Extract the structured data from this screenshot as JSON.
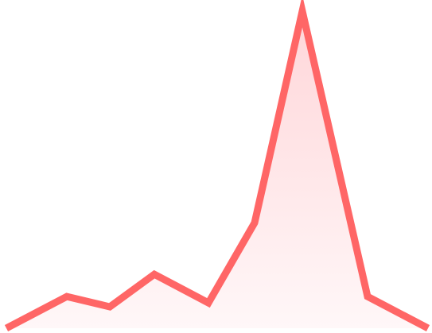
{
  "chart_data": {
    "type": "area",
    "x": [
      0,
      1,
      2,
      3,
      4,
      5,
      6,
      7,
      8
    ],
    "values": [
      0,
      40,
      27,
      68,
      32,
      133,
      400,
      40,
      0
    ],
    "ylim": [
      0,
      400
    ],
    "grid": false,
    "axes_visible": false,
    "colors": {
      "line": "#ff6666",
      "fill_top": "#ffd6d9",
      "fill_bottom": "#fff7f8"
    }
  }
}
